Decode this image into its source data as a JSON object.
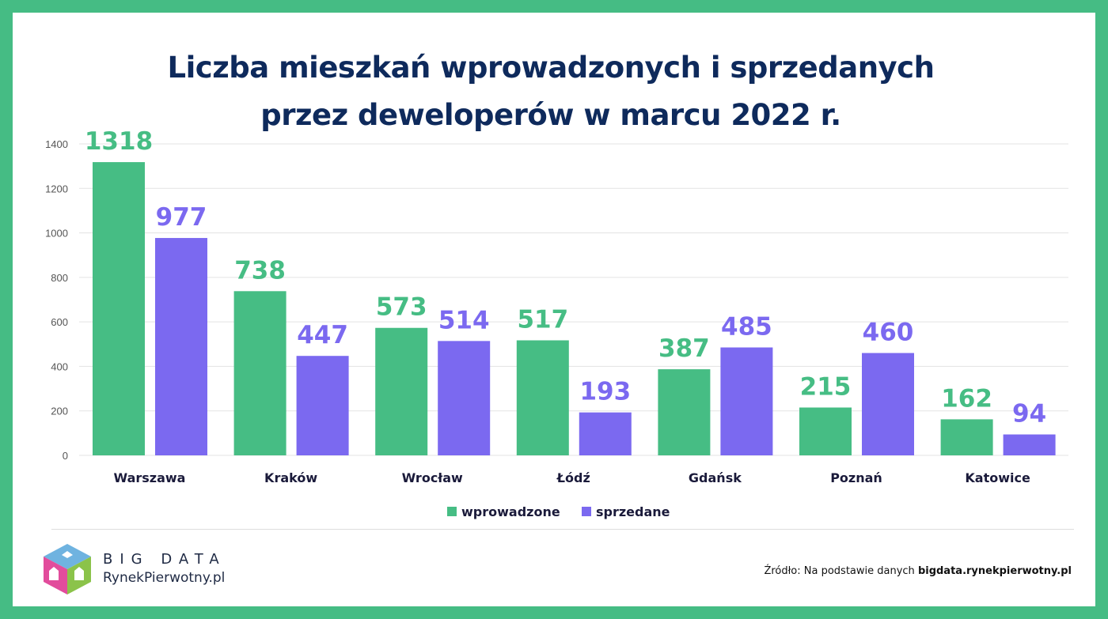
{
  "title_line1": "Liczba mieszkań wprowadzonych i sprzedanych",
  "title_line2": "przez deweloperów w marcu 2022 r.",
  "colors": {
    "wprowadzone": "#46BD84",
    "sprzedane": "#7B69F0",
    "title": "#0E2A5C",
    "border": "#45BC84"
  },
  "chart_data": {
    "type": "bar",
    "title": "Liczba mieszkań wprowadzonych i sprzedanych przez deweloperów w marcu 2022 r.",
    "categories": [
      "Warszawa",
      "Kraków",
      "Wrocław",
      "Łódź",
      "Gdańsk",
      "Poznań",
      "Katowice"
    ],
    "series": [
      {
        "name": "wprowadzone",
        "values": [
          1318,
          738,
          573,
          517,
          387,
          215,
          162
        ]
      },
      {
        "name": "sprzedane",
        "values": [
          977,
          447,
          514,
          193,
          485,
          460,
          94
        ]
      }
    ],
    "ylim": [
      0,
      1400
    ],
    "yticks": [
      0,
      200,
      400,
      600,
      800,
      1000,
      1200,
      1400
    ],
    "grid": true,
    "legend": "bottom-center",
    "xlabel": "",
    "ylabel": ""
  },
  "logo": {
    "line1": "BIG DATA",
    "line2": "RynekPierwotny.pl"
  },
  "source": {
    "prefix": "Źródło: Na podstawie danych ",
    "site": "bigdata.rynekpierwotny.pl"
  }
}
